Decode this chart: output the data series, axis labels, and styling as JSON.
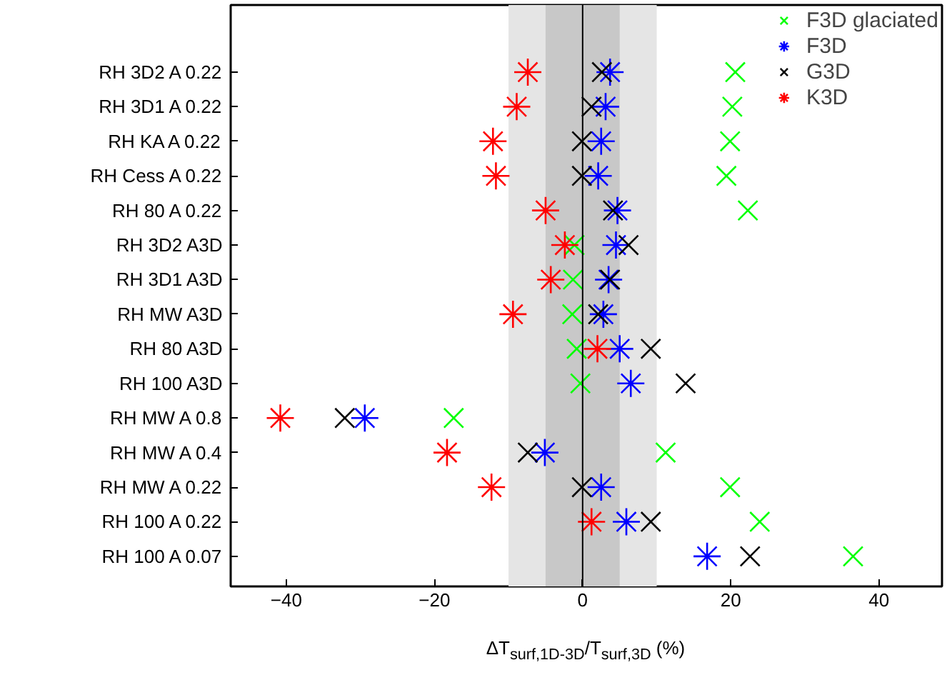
{
  "chart_data": {
    "type": "scatter",
    "categories": [
      "RH 3D2 A 0.22",
      "RH 3D1 A 0.22",
      "RH KA A 0.22",
      "RH Cess A 0.22",
      "RH 80 A 0.22",
      "RH 3D2 A3D",
      "RH 3D1 A3D",
      "RH MW A3D",
      "RH 80 A3D",
      "RH 100 A3D",
      "RH MW A 0.8",
      "RH MW A 0.4",
      "RH MW A 0.22",
      "RH 100 A 0.22",
      "RH 100 A 0.07"
    ],
    "orientation": "horizontal",
    "xlabel": "ΔT$_{surf,1D-3D}$/T$_{surf,3D}$ (%)",
    "xlim": [
      -47.5,
      48.5
    ],
    "xticks": [
      -40,
      -20,
      0,
      20,
      40
    ],
    "grid": false,
    "legend": "top right",
    "bands": [
      {
        "axis": "x",
        "from": -10,
        "to": 10,
        "color": "#e5e5e5"
      },
      {
        "axis": "x",
        "from": -5,
        "to": 5,
        "color": "#c8c8c8"
      }
    ],
    "ref_lines": [
      {
        "axis": "x",
        "value": 0,
        "color": "#000000",
        "line_style": "solid"
      }
    ],
    "series": [
      {
        "name": "F3D glaciated",
        "color": "#00ff00",
        "marker": "cross",
        "values": [
          20.6,
          20.2,
          19.9,
          19.4,
          22.3,
          -1.1,
          -1.3,
          -1.4,
          -0.8,
          -0.3,
          -17.4,
          11.2,
          19.9,
          23.9,
          36.5
        ]
      },
      {
        "name": "F3D",
        "color": "#0000ff",
        "values": [
          3.7,
          3.1,
          2.5,
          2.1,
          4.7,
          4.5,
          3.5,
          2.8,
          5.0,
          6.5,
          -29.4,
          -5.1,
          2.5,
          5.9,
          16.8
        ]
      },
      {
        "name": "G3D",
        "color": "#000000",
        "marker": "cross",
        "values": [
          2.6,
          1.2,
          -0.1,
          -0.1,
          4.1,
          6.2,
          3.7,
          2.1,
          9.2,
          13.9,
          -32.1,
          -7.4,
          -0.1,
          9.2,
          22.6
        ]
      },
      {
        "name": "K3D",
        "color": "#ff0000",
        "values": [
          -7.4,
          -8.9,
          -12.1,
          -11.7,
          -5.0,
          -2.4,
          -4.3,
          -9.4,
          2.0,
          null,
          -40.8,
          -18.3,
          -12.3,
          1.2,
          null
        ]
      }
    ]
  }
}
